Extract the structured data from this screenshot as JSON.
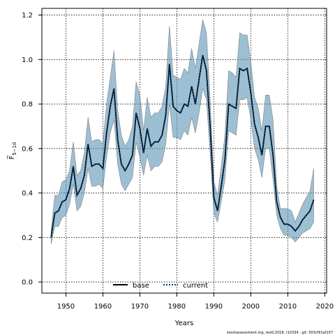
{
  "chart_data": {
    "type": "line",
    "xlabel": "Years",
    "ylabel": "F̅",
    "ylabel_sub": "5−10",
    "xlim": [
      1943.5,
      2020.5
    ],
    "ylim": [
      -0.05,
      1.23
    ],
    "xticks": [
      1950,
      1960,
      1970,
      1980,
      1990,
      2000,
      2010,
      2020
    ],
    "yticks": [
      0.0,
      0.2,
      0.4,
      0.6,
      0.8,
      1.0,
      1.2
    ],
    "grid": true,
    "legend": "bottom-center",
    "x": [
      1946,
      1947,
      1948,
      1949,
      1950,
      1951,
      1952,
      1953,
      1954,
      1955,
      1956,
      1957,
      1958,
      1959,
      1960,
      1961,
      1962,
      1963,
      1964,
      1965,
      1966,
      1967,
      1968,
      1969,
      1970,
      1971,
      1972,
      1973,
      1974,
      1975,
      1976,
      1977,
      1978,
      1979,
      1980,
      1981,
      1982,
      1983,
      1984,
      1985,
      1986,
      1987,
      1988,
      1989,
      1990,
      1991,
      1992,
      1993,
      1994,
      1995,
      1996,
      1997,
      1998,
      1999,
      2000,
      2001,
      2002,
      2003,
      2004,
      2005,
      2006,
      2007,
      2008,
      2009,
      2010,
      2011,
      2012,
      2013,
      2014,
      2015,
      2016,
      2017
    ],
    "band_lower": [
      0.17,
      0.25,
      0.25,
      0.29,
      0.3,
      0.35,
      0.44,
      0.32,
      0.34,
      0.4,
      0.51,
      0.43,
      0.43,
      0.44,
      0.42,
      0.56,
      0.67,
      0.73,
      0.53,
      0.44,
      0.41,
      0.44,
      0.47,
      0.63,
      0.56,
      0.48,
      0.57,
      0.5,
      0.52,
      0.52,
      0.54,
      0.62,
      0.8,
      0.65,
      0.65,
      0.64,
      0.68,
      0.66,
      0.74,
      0.67,
      0.76,
      0.87,
      0.82,
      0.58,
      0.31,
      0.27,
      0.36,
      0.46,
      0.68,
      0.67,
      0.66,
      0.82,
      0.82,
      0.83,
      0.73,
      0.6,
      0.55,
      0.47,
      0.6,
      0.6,
      0.46,
      0.3,
      0.24,
      0.21,
      0.21,
      0.2,
      0.18,
      0.2,
      0.22,
      0.23,
      0.24,
      0.27
    ],
    "band_upper": [
      0.23,
      0.39,
      0.39,
      0.45,
      0.46,
      0.5,
      0.63,
      0.48,
      0.5,
      0.58,
      0.74,
      0.63,
      0.64,
      0.64,
      0.62,
      0.8,
      0.92,
      1.04,
      0.77,
      0.66,
      0.61,
      0.64,
      0.7,
      0.9,
      0.84,
      0.68,
      0.83,
      0.74,
      0.76,
      0.76,
      0.79,
      0.88,
      1.15,
      0.93,
      0.92,
      0.91,
      0.96,
      0.94,
      1.05,
      0.96,
      1.07,
      1.18,
      1.12,
      0.82,
      0.45,
      0.39,
      0.52,
      0.66,
      0.95,
      0.94,
      0.92,
      1.12,
      1.11,
      1.11,
      0.99,
      0.83,
      0.78,
      0.68,
      0.84,
      0.84,
      0.73,
      0.43,
      0.33,
      0.33,
      0.33,
      0.32,
      0.27,
      0.31,
      0.35,
      0.38,
      0.41,
      0.51
    ],
    "series": [
      {
        "name": "base",
        "values": [
          0.2,
          0.31,
          0.32,
          0.36,
          0.37,
          0.42,
          0.52,
          0.39,
          0.42,
          0.48,
          0.62,
          0.52,
          0.53,
          0.53,
          0.51,
          0.67,
          0.79,
          0.87,
          0.64,
          0.53,
          0.5,
          0.53,
          0.57,
          0.76,
          0.69,
          0.58,
          0.69,
          0.61,
          0.63,
          0.63,
          0.66,
          0.75,
          0.98,
          0.79,
          0.77,
          0.76,
          0.8,
          0.79,
          0.88,
          0.8,
          0.91,
          1.02,
          0.95,
          0.7,
          0.38,
          0.32,
          0.43,
          0.55,
          0.8,
          0.79,
          0.78,
          0.96,
          0.95,
          0.96,
          0.85,
          0.71,
          0.65,
          0.57,
          0.7,
          0.7,
          0.57,
          0.36,
          0.29,
          0.26,
          0.26,
          0.25,
          0.23,
          0.25,
          0.28,
          0.3,
          0.32,
          0.37
        ]
      },
      {
        "name": "current",
        "values": [
          0.2,
          0.31,
          0.32,
          0.36,
          0.37,
          0.42,
          0.52,
          0.39,
          0.42,
          0.48,
          0.62,
          0.52,
          0.53,
          0.53,
          0.51,
          0.67,
          0.79,
          0.87,
          0.64,
          0.53,
          0.5,
          0.53,
          0.57,
          0.76,
          0.69,
          0.58,
          0.69,
          0.61,
          0.63,
          0.63,
          0.66,
          0.75,
          0.98,
          0.79,
          0.77,
          0.76,
          0.8,
          0.79,
          0.88,
          0.8,
          0.91,
          1.02,
          0.95,
          0.7,
          0.38,
          0.32,
          0.43,
          0.55,
          0.8,
          0.79,
          0.78,
          0.96,
          0.95,
          0.96,
          0.85,
          0.71,
          0.65,
          0.57,
          0.7,
          0.7,
          0.57,
          0.36,
          0.29,
          0.26,
          0.26,
          0.25,
          0.23,
          0.25,
          0.28,
          0.3,
          0.32,
          0.37
        ]
      }
    ],
    "colors": {
      "band_fill": "#5b95b8",
      "band_edge": "#808080",
      "base_line": "#000000",
      "current_line": "#0b3d6b"
    }
  },
  "footer": "stockassessment.org, testC2018, r10334 , git: 503cf91af157"
}
